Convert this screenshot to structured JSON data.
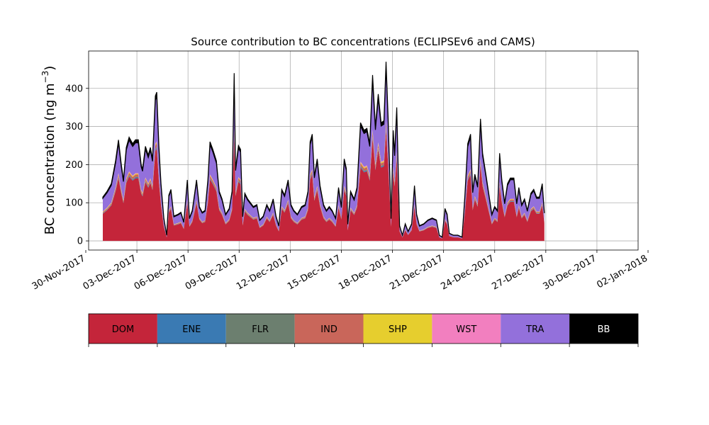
{
  "chart_data": {
    "type": "area",
    "stacked": true,
    "title": "Source contribution to BC concentrations (ECLIPSEv6 and CAMS)",
    "ylabel": "BC concentration (ng m",
    "ylabel_superscript": "−3",
    "ylabel_suffix": ")",
    "xlabel": "",
    "x_start": "2017-12-01",
    "x_end": "2017-12-31",
    "x_tick_dates": [
      "2017-11-30",
      "2017-12-03",
      "2017-12-06",
      "2017-12-09",
      "2017-12-12",
      "2017-12-15",
      "2017-12-18",
      "2017-12-21",
      "2017-12-24",
      "2017-12-27",
      "2017-12-30",
      "2018-01-02"
    ],
    "x_tick_labels": [
      "30-Nov-2017",
      "03-Dec-2017",
      "06-Dec-2017",
      "09-Dec-2017",
      "12-Dec-2017",
      "15-Dec-2017",
      "18-Dec-2017",
      "21-Dec-2017",
      "24-Dec-2017",
      "27-Dec-2017",
      "30-Dec-2017",
      "02-Jan-2018"
    ],
    "y_ticks": [
      0,
      100,
      200,
      300,
      400
    ],
    "xlim": [
      "2017-11-30T04:00",
      "2018-01-01T10:00"
    ],
    "ylim": [
      -24,
      498
    ],
    "grid": true,
    "dom_ratio": 0.62,
    "total_keypoints": [
      [
        "2017-12-01T00:00",
        115
      ],
      [
        "2017-12-01T06:00",
        130
      ],
      [
        "2017-12-01T12:00",
        150
      ],
      [
        "2017-12-01T18:00",
        210
      ],
      [
        "2017-12-01T22:00",
        265
      ],
      [
        "2017-12-02T02:00",
        200
      ],
      [
        "2017-12-02T05:00",
        160
      ],
      [
        "2017-12-02T09:00",
        245
      ],
      [
        "2017-12-02T13:00",
        272
      ],
      [
        "2017-12-02T18:00",
        255
      ],
      [
        "2017-12-02T22:00",
        265
      ],
      [
        "2017-12-03T02:00",
        265
      ],
      [
        "2017-12-03T06:00",
        200
      ],
      [
        "2017-12-03T08:00",
        188
      ],
      [
        "2017-12-03T12:00",
        248
      ],
      [
        "2017-12-03T16:00",
        225
      ],
      [
        "2017-12-03T19:00",
        245
      ],
      [
        "2017-12-03T22:00",
        215
      ],
      [
        "2017-12-04T02:00",
        380
      ],
      [
        "2017-12-04T04:00",
        390
      ],
      [
        "2017-12-04T07:00",
        250
      ],
      [
        "2017-12-04T10:00",
        150
      ],
      [
        "2017-12-04T14:00",
        60
      ],
      [
        "2017-12-04T18:00",
        15
      ],
      [
        "2017-12-04T21:00",
        120
      ],
      [
        "2017-12-05T00:00",
        135
      ],
      [
        "2017-12-05T04:00",
        65
      ],
      [
        "2017-12-05T10:00",
        70
      ],
      [
        "2017-12-05T14:00",
        75
      ],
      [
        "2017-12-05T18:00",
        50
      ],
      [
        "2017-12-05T23:00",
        160
      ],
      [
        "2017-12-06T02:00",
        60
      ],
      [
        "2017-12-06T06:00",
        80
      ],
      [
        "2017-12-06T12:00",
        160
      ],
      [
        "2017-12-06T16:00",
        90
      ],
      [
        "2017-12-06T20:00",
        75
      ],
      [
        "2017-12-07T00:00",
        80
      ],
      [
        "2017-12-07T04:00",
        160
      ],
      [
        "2017-12-07T07:00",
        260
      ],
      [
        "2017-12-07T11:00",
        240
      ],
      [
        "2017-12-07T16:00",
        210
      ],
      [
        "2017-12-07T20:00",
        130
      ],
      [
        "2017-12-08T00:00",
        110
      ],
      [
        "2017-12-08T05:00",
        70
      ],
      [
        "2017-12-08T10:00",
        85
      ],
      [
        "2017-12-08T14:00",
        130
      ],
      [
        "2017-12-08T17:00",
        440
      ],
      [
        "2017-12-08T19:00",
        190
      ],
      [
        "2017-12-08T23:00",
        250
      ],
      [
        "2017-12-09T02:00",
        240
      ],
      [
        "2017-12-09T05:00",
        65
      ],
      [
        "2017-12-09T08:00",
        125
      ],
      [
        "2017-12-09T12:00",
        110
      ],
      [
        "2017-12-09T16:00",
        100
      ],
      [
        "2017-12-09T20:00",
        90
      ],
      [
        "2017-12-10T01:00",
        95
      ],
      [
        "2017-12-10T05:00",
        55
      ],
      [
        "2017-12-10T10:00",
        65
      ],
      [
        "2017-12-10T15:00",
        95
      ],
      [
        "2017-12-10T19:00",
        80
      ],
      [
        "2017-12-11T00:00",
        110
      ],
      [
        "2017-12-11T04:00",
        65
      ],
      [
        "2017-12-11T08:00",
        40
      ],
      [
        "2017-12-11T12:00",
        135
      ],
      [
        "2017-12-11T16:00",
        120
      ],
      [
        "2017-12-11T21:00",
        160
      ],
      [
        "2017-12-12T01:00",
        95
      ],
      [
        "2017-12-12T05:00",
        80
      ],
      [
        "2017-12-12T10:00",
        70
      ],
      [
        "2017-12-12T16:00",
        90
      ],
      [
        "2017-12-12T21:00",
        95
      ],
      [
        "2017-12-13T01:00",
        130
      ],
      [
        "2017-12-13T04:00",
        260
      ],
      [
        "2017-12-13T07:00",
        280
      ],
      [
        "2017-12-13T10:00",
        170
      ],
      [
        "2017-12-13T14:00",
        215
      ],
      [
        "2017-12-13T18:00",
        145
      ],
      [
        "2017-12-13T23:00",
        95
      ],
      [
        "2017-12-14T03:00",
        80
      ],
      [
        "2017-12-14T07:00",
        90
      ],
      [
        "2017-12-14T11:00",
        80
      ],
      [
        "2017-12-14T16:00",
        60
      ],
      [
        "2017-12-14T20:00",
        140
      ],
      [
        "2017-12-15T00:00",
        90
      ],
      [
        "2017-12-15T04:00",
        215
      ],
      [
        "2017-12-15T07:00",
        190
      ],
      [
        "2017-12-15T09:00",
        45
      ],
      [
        "2017-12-15T13:00",
        130
      ],
      [
        "2017-12-15T18:00",
        110
      ],
      [
        "2017-12-15T22:00",
        140
      ],
      [
        "2017-12-16T03:00",
        310
      ],
      [
        "2017-12-16T08:00",
        290
      ],
      [
        "2017-12-16T12:00",
        295
      ],
      [
        "2017-12-16T16:00",
        255
      ],
      [
        "2017-12-16T20:00",
        435
      ],
      [
        "2017-12-17T00:00",
        300
      ],
      [
        "2017-12-17T04:00",
        385
      ],
      [
        "2017-12-17T08:00",
        310
      ],
      [
        "2017-12-17T12:00",
        315
      ],
      [
        "2017-12-17T15:00",
        470
      ],
      [
        "2017-12-17T18:00",
        320
      ],
      [
        "2017-12-17T22:00",
        60
      ],
      [
        "2017-12-18T01:00",
        290
      ],
      [
        "2017-12-18T03:00",
        230
      ],
      [
        "2017-12-18T06:00",
        350
      ],
      [
        "2017-12-18T10:00",
        40
      ],
      [
        "2017-12-18T14:00",
        15
      ],
      [
        "2017-12-18T18:00",
        45
      ],
      [
        "2017-12-18T22:00",
        25
      ],
      [
        "2017-12-19T03:00",
        45
      ],
      [
        "2017-12-19T07:00",
        145
      ],
      [
        "2017-12-19T10:00",
        70
      ],
      [
        "2017-12-19T14:00",
        40
      ],
      [
        "2017-12-19T20:00",
        45
      ],
      [
        "2017-12-20T02:00",
        55
      ],
      [
        "2017-12-20T08:00",
        60
      ],
      [
        "2017-12-20T14:00",
        55
      ],
      [
        "2017-12-20T18:00",
        15
      ],
      [
        "2017-12-20T22:00",
        10
      ],
      [
        "2017-12-21T02:00",
        85
      ],
      [
        "2017-12-21T05:00",
        70
      ],
      [
        "2017-12-21T08:00",
        20
      ],
      [
        "2017-12-21T14:00",
        15
      ],
      [
        "2017-12-21T20:00",
        15
      ],
      [
        "2017-12-22T02:00",
        10
      ],
      [
        "2017-12-22T06:00",
        120
      ],
      [
        "2017-12-22T10:00",
        255
      ],
      [
        "2017-12-22T14:00",
        280
      ],
      [
        "2017-12-22T17:00",
        130
      ],
      [
        "2017-12-22T20:00",
        175
      ],
      [
        "2017-12-23T00:00",
        145
      ],
      [
        "2017-12-23T04:00",
        320
      ],
      [
        "2017-12-23T07:00",
        230
      ],
      [
        "2017-12-23T12:00",
        170
      ],
      [
        "2017-12-23T16:00",
        120
      ],
      [
        "2017-12-23T20:00",
        70
      ],
      [
        "2017-12-24T00:00",
        90
      ],
      [
        "2017-12-24T04:00",
        80
      ],
      [
        "2017-12-24T07:00",
        230
      ],
      [
        "2017-12-24T10:00",
        160
      ],
      [
        "2017-12-24T14:00",
        100
      ],
      [
        "2017-12-24T18:00",
        150
      ],
      [
        "2017-12-24T22:00",
        165
      ],
      [
        "2017-12-25T03:00",
        165
      ],
      [
        "2017-12-25T07:00",
        100
      ],
      [
        "2017-12-25T10:00",
        140
      ],
      [
        "2017-12-25T14:00",
        95
      ],
      [
        "2017-12-25T18:00",
        110
      ],
      [
        "2017-12-25T22:00",
        80
      ],
      [
        "2017-12-26T03:00",
        125
      ],
      [
        "2017-12-26T07:00",
        135
      ],
      [
        "2017-12-26T11:00",
        115
      ],
      [
        "2017-12-26T15:00",
        115
      ],
      [
        "2017-12-26T19:00",
        150
      ],
      [
        "2017-12-26T22:00",
        75
      ]
    ],
    "stack_order_bottom_to_top": [
      "DOM",
      "ENE",
      "FLR",
      "IND",
      "SHP",
      "WST",
      "TRA",
      "BB"
    ],
    "legend": [
      {
        "label": "DOM",
        "color": "#c4253a",
        "text_color": "#000000"
      },
      {
        "label": "ENE",
        "color": "#3a7ab3",
        "text_color": "#000000"
      },
      {
        "label": "FLR",
        "color": "#6c7f6f",
        "text_color": "#000000"
      },
      {
        "label": "IND",
        "color": "#c9665a",
        "text_color": "#000000"
      },
      {
        "label": "SHP",
        "color": "#e6ce2e",
        "text_color": "#000000"
      },
      {
        "label": "WST",
        "color": "#f27fbf",
        "text_color": "#000000"
      },
      {
        "label": "TRA",
        "color": "#9370db",
        "text_color": "#000000"
      },
      {
        "label": "BB",
        "color": "#000000",
        "text_color": "#ffffff"
      }
    ]
  }
}
